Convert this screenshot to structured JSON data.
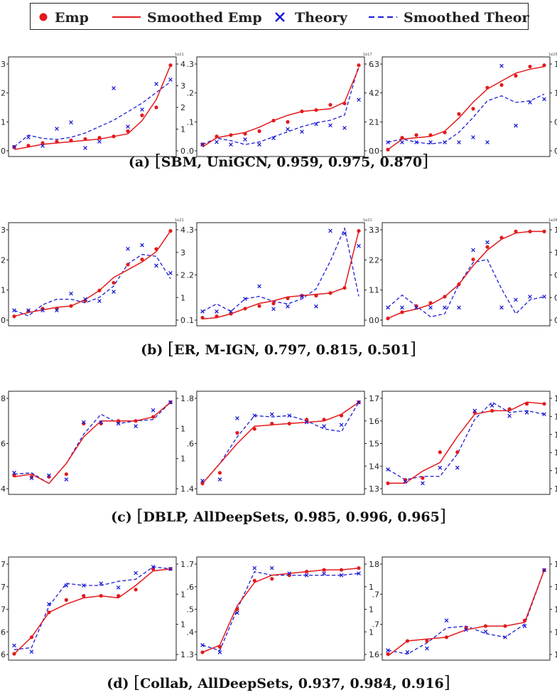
{
  "legend": {
    "emp": "Emp",
    "smoothed_emp": "Smoothed Emp",
    "theory": "Theory",
    "smoothed_theory": "Smoothed Theory"
  },
  "colors": {
    "emp": "#e31a1c",
    "theory": "#1c1cd6",
    "axis": "#222222"
  },
  "chart_data": [
    {
      "row": "a",
      "caption": {
        "label": "(a)",
        "open": "[",
        "text": "SBM, UniGCN, 0.959, 0.975, 0.870",
        "close": "]"
      },
      "panels": [
        {
          "type": "scatter",
          "left_ticks": [
            ".0",
            ".1",
            ".2",
            ".3"
          ],
          "ylim_left": [
            0,
            0.34
          ],
          "right_ticks": [
            "0",
            "1",
            "2",
            "3",
            "4"
          ],
          "ylim_right": [
            -0.2,
            4.0
          ],
          "exponent": "1e21",
          "emp": [
            0.02,
            0.025,
            0.035,
            0.04,
            0.045,
            0.05,
            0.055,
            0.06,
            0.08,
            0.14,
            0.17,
            0.33
          ],
          "emp_smooth": [
            0.01,
            0.02,
            0.03,
            0.035,
            0.04,
            0.045,
            0.05,
            0.06,
            0.07,
            0.12,
            0.2,
            0.33
          ],
          "theory": [
            0.05,
            0.5,
            0.1,
            0.9,
            1.2,
            0.0,
            0.3,
            2.8,
            1.0,
            1.8,
            3.0,
            3.2
          ],
          "theory_smooth": [
            0.05,
            0.6,
            0.45,
            0.4,
            0.5,
            0.7,
            1.0,
            1.3,
            1.7,
            2.1,
            2.6,
            3.1
          ]
        },
        {
          "type": "scatter",
          "left_ticks": [
            ".0",
            ".1",
            ".2",
            ".3"
          ],
          "ylim_left": [
            0,
            0.34
          ],
          "right_ticks": [
            "0",
            "2",
            "4",
            "6"
          ],
          "ylim_right": [
            -0.6,
            6.4
          ],
          "exponent": "1e17",
          "emp": [
            0.03,
            0.06,
            0.065,
            0.07,
            0.08,
            0.12,
            0.115,
            0.155,
            0.16,
            0.18,
            0.185,
            0.33
          ],
          "emp_smooth": [
            0.02,
            0.055,
            0.065,
            0.075,
            0.095,
            0.12,
            0.14,
            0.155,
            0.16,
            0.165,
            0.19,
            0.32
          ],
          "theory": [
            0,
            0.2,
            0,
            0.4,
            0,
            0.5,
            1.2,
            1.0,
            1.6,
            1.5,
            1.3,
            3.5
          ],
          "theory_smooth": [
            0,
            0.5,
            0.3,
            0,
            0.2,
            0.6,
            1.0,
            1.4,
            1.7,
            1.9,
            2.3,
            6.2
          ]
        },
        {
          "type": "scatter",
          "left_ticks": [
            ".0",
            ".1",
            ".2",
            ".3"
          ],
          "ylim_left": [
            0,
            0.34
          ],
          "right_ticks": [
            "0",
            "0",
            "1",
            "1"
          ],
          "ylim_right": [
            -0.6,
            4.8
          ],
          "exponent": "1e25",
          "emp": [
            0.01,
            0.055,
            0.065,
            0.065,
            0.075,
            0.145,
            0.165,
            0.245,
            0.255,
            0.29,
            0.325,
            0.33
          ],
          "emp_smooth": [
            0.01,
            0.05,
            0.055,
            0.06,
            0.08,
            0.13,
            0.19,
            0.24,
            0.27,
            0.3,
            0.315,
            0.325
          ],
          "theory": [
            0.0,
            0.0,
            0.0,
            0.0,
            0.0,
            0.0,
            0.3,
            0.0,
            4.6,
            1.0,
            2.4,
            2.6
          ],
          "theory_smooth": [
            0.0,
            0.2,
            0.0,
            -0.1,
            0.0,
            0.6,
            1.5,
            2.5,
            2.8,
            2.4,
            2.5,
            2.9
          ]
        }
      ]
    },
    {
      "row": "b",
      "caption": {
        "label": "(b)",
        "open": "[",
        "text": "ER, M-IGN, 0.797, 0.815, 0.501",
        "close": "]"
      },
      "panels": [
        {
          "type": "scatter",
          "left_ticks": [
            ".0",
            ".1",
            ".2",
            ".3"
          ],
          "ylim_left": [
            0,
            0.36
          ],
          "right_ticks": [
            "0",
            "1",
            "2",
            "3",
            "4"
          ],
          "ylim_right": [
            -0.6,
            4.4
          ],
          "exponent": "1e21",
          "emp": [
            0.02,
            0.04,
            0.05,
            0.05,
            0.06,
            0.08,
            0.12,
            0.15,
            0.22,
            0.24,
            0.28,
            0.35
          ],
          "emp_smooth": [
            0.02,
            0.035,
            0.045,
            0.055,
            0.06,
            0.085,
            0.12,
            0.17,
            0.2,
            0.23,
            0.27,
            0.35
          ],
          "theory": [
            0.0,
            0.0,
            0.0,
            0.0,
            0.9,
            0.6,
            0.5,
            1.0,
            3.3,
            3.5,
            2.4,
            2.0
          ],
          "theory_smooth": [
            0.0,
            -0.3,
            0.3,
            0.6,
            0.6,
            0.4,
            0.7,
            1.3,
            2.5,
            3.0,
            2.9,
            1.7
          ]
        },
        {
          "type": "scatter",
          "left_ticks": [
            ".1",
            ".2",
            ".3"
          ],
          "ylim_left": [
            0.06,
            0.42
          ],
          "right_ticks": [
            "0",
            "1",
            "2",
            "3"
          ],
          "ylim_right": [
            -0.4,
            3.3
          ],
          "exponent": "1e21",
          "emp": [
            0.075,
            0.08,
            0.09,
            0.11,
            0.12,
            0.13,
            0.15,
            0.16,
            0.16,
            0.17,
            0.19,
            0.41
          ],
          "emp_smooth": [
            0.07,
            0.075,
            0.09,
            0.11,
            0.13,
            0.14,
            0.155,
            0.16,
            0.165,
            0.17,
            0.19,
            0.41
          ],
          "theory": [
            0.0,
            0.0,
            0.0,
            0.5,
            1.0,
            0.1,
            0.2,
            0.6,
            0.2,
            3.2,
            3.1,
            2.6
          ],
          "theory_smooth": [
            0.0,
            0.3,
            0.0,
            0.5,
            0.6,
            0.4,
            0.3,
            0.5,
            0.9,
            2.0,
            3.3,
            0.6
          ]
        },
        {
          "type": "scatter",
          "left_ticks": [
            ".0",
            ".1",
            ".2",
            ".3"
          ],
          "ylim_left": [
            0,
            0.3
          ],
          "right_ticks": [
            "0",
            "0",
            "0",
            "1",
            "1"
          ],
          "ylim_right": [
            -0.6,
            5.4
          ],
          "exponent": "1e26",
          "emp": [
            0.01,
            0.03,
            0.05,
            0.06,
            0.08,
            0.12,
            0.2,
            0.24,
            0.27,
            0.29,
            0.29,
            0.29
          ],
          "emp_smooth": [
            0.01,
            0.03,
            0.04,
            0.055,
            0.08,
            0.12,
            0.18,
            0.23,
            0.265,
            0.285,
            0.29,
            0.29
          ],
          "theory": [
            0.3,
            0.3,
            0.3,
            0.3,
            0.3,
            0.3,
            4.0,
            4.5,
            0.3,
            0.8,
            1.0,
            1.0
          ],
          "theory_smooth": [
            0.3,
            1.1,
            0.4,
            -0.3,
            -0.1,
            1.8,
            3.2,
            3.4,
            1.5,
            -0.1,
            0.8,
            1.0
          ]
        }
      ]
    },
    {
      "row": "c",
      "caption": {
        "label": "(c)",
        "open": "[",
        "text": "DBLP, AllDeepSets, 0.985, 0.996, 0.965",
        "close": "]"
      },
      "panels": [
        {
          "type": "scatter",
          "left_ticks": [
            ".4",
            ".6",
            ".8"
          ],
          "ylim_left": [
            0.2,
            0.9
          ],
          "right_ticks": [
            "1",
            "1",
            "1",
            "1"
          ],
          "ylim_right": [
            0.2,
            0.9
          ],
          "exponent": "",
          "emp": [
            0.31,
            0.3,
            0.3,
            0.32,
            0.7,
            0.7,
            0.72,
            0.72,
            0.75,
            0.86
          ],
          "emp_smooth": [
            0.3,
            0.32,
            0.25,
            0.4,
            0.6,
            0.72,
            0.72,
            0.72,
            0.75,
            0.86
          ],
          "theory": [
            0.33,
            0.29,
            0.31,
            0.28,
            0.71,
            0.71,
            0.7,
            0.68,
            0.8,
            0.86
          ],
          "theory_smooth": [
            0.32,
            0.33,
            0.25,
            0.4,
            0.62,
            0.77,
            0.7,
            0.72,
            0.73,
            0.86
          ]
        },
        {
          "type": "scatter",
          "left_ticks": [
            ".4",
            ".6",
            ".8"
          ],
          "ylim_left": [
            0.2,
            0.9
          ],
          "right_ticks": [
            "1",
            "1",
            "1",
            "1",
            "1"
          ],
          "ylim_right": [
            0.2,
            0.9
          ],
          "exponent": "",
          "emp": [
            0.25,
            0.33,
            0.63,
            0.66,
            0.7,
            0.7,
            0.73,
            0.73,
            0.76,
            0.86
          ],
          "emp_smooth": [
            0.25,
            0.4,
            0.55,
            0.68,
            0.69,
            0.7,
            0.71,
            0.72,
            0.77,
            0.86
          ],
          "theory": [
            0.27,
            0.28,
            0.74,
            0.76,
            0.77,
            0.76,
            0.71,
            0.68,
            0.69,
            0.86
          ],
          "theory_smooth": [
            0.25,
            0.4,
            0.6,
            0.76,
            0.75,
            0.76,
            0.72,
            0.66,
            0.64,
            0.86
          ]
        },
        {
          "type": "scatter",
          "left_ticks": [
            ".3",
            ".4",
            ".5",
            ".6",
            ".7"
          ],
          "ylim_left": [
            0.24,
            0.78
          ],
          "right_ticks": [
            "1",
            "1",
            "1",
            "1",
            "1",
            "1"
          ],
          "ylim_right": [
            0.24,
            0.78
          ],
          "exponent": "",
          "emp": [
            0.28,
            0.3,
            0.31,
            0.46,
            0.46,
            0.69,
            0.7,
            0.71,
            0.74,
            0.74
          ],
          "emp_smooth": [
            0.28,
            0.28,
            0.35,
            0.4,
            0.55,
            0.68,
            0.7,
            0.7,
            0.75,
            0.74
          ],
          "theory": [
            0.36,
            0.29,
            0.28,
            0.37,
            0.37,
            0.7,
            0.73,
            0.67,
            0.69,
            0.68
          ],
          "theory_smooth": [
            0.36,
            0.3,
            0.32,
            0.32,
            0.45,
            0.65,
            0.75,
            0.69,
            0.7,
            0.68
          ]
        }
      ]
    },
    {
      "row": "d",
      "caption": {
        "label": "(d)",
        "open": "[",
        "text": "Collab, AllDeepSets, 0.937, 0.984, 0.916",
        "close": "]"
      },
      "panels": [
        {
          "type": "scatter",
          "left_ticks": [
            ".6",
            ".6",
            ".7",
            ".7",
            ".7"
          ],
          "ylim_left": [
            0.55,
            1.0
          ],
          "right_ticks": [
            "1",
            "1",
            "1",
            "1"
          ],
          "ylim_right": [
            0.55,
            1.0
          ],
          "exponent": "",
          "emp": [
            0.56,
            0.64,
            0.76,
            0.82,
            0.84,
            0.84,
            0.84,
            0.87,
            0.97,
            0.97
          ],
          "emp_smooth": [
            0.56,
            0.64,
            0.76,
            0.8,
            0.83,
            0.84,
            0.83,
            0.89,
            0.96,
            0.97
          ],
          "theory": [
            0.6,
            0.57,
            0.8,
            0.89,
            0.89,
            0.9,
            0.88,
            0.95,
            0.98,
            0.97
          ],
          "theory_smooth": [
            0.58,
            0.59,
            0.79,
            0.9,
            0.89,
            0.89,
            0.91,
            0.92,
            0.98,
            0.97
          ]
        },
        {
          "type": "scatter",
          "left_ticks": [
            ".3",
            ".4",
            ".5",
            ".6",
            ".7"
          ],
          "ylim_left": [
            0.24,
            0.76
          ],
          "right_ticks": [
            "1",
            "1",
            "1",
            "1",
            "1"
          ],
          "ylim_right": [
            0.24,
            0.76
          ],
          "exponent": "",
          "emp": [
            0.26,
            0.29,
            0.5,
            0.66,
            0.67,
            0.69,
            0.71,
            0.72,
            0.72,
            0.73
          ],
          "emp_smooth": [
            0.26,
            0.3,
            0.52,
            0.65,
            0.69,
            0.7,
            0.71,
            0.72,
            0.72,
            0.73
          ],
          "theory": [
            0.3,
            0.26,
            0.48,
            0.73,
            0.73,
            0.7,
            0.69,
            0.7,
            0.69,
            0.7
          ],
          "theory_smooth": [
            0.3,
            0.27,
            0.5,
            0.71,
            0.69,
            0.69,
            0.69,
            0.69,
            0.69,
            0.7
          ]
        },
        {
          "type": "scatter",
          "left_ticks": [
            ".6",
            ".7",
            ".7",
            ".8"
          ],
          "ylim_left": [
            0.5,
            1.0
          ],
          "right_ticks": [
            "1",
            "1",
            "1",
            "1",
            "1"
          ],
          "ylim_right": [
            0.5,
            1.0
          ],
          "exponent": "",
          "emp": [
            0.51,
            0.58,
            0.58,
            0.6,
            0.65,
            0.66,
            0.66,
            0.69,
            0.96
          ],
          "emp_smooth": [
            0.5,
            0.58,
            0.59,
            0.6,
            0.64,
            0.66,
            0.66,
            0.68,
            0.96
          ],
          "theory": [
            0.53,
            0.52,
            0.54,
            0.69,
            0.64,
            0.63,
            0.6,
            0.66,
            0.96
          ],
          "theory_smooth": [
            0.53,
            0.51,
            0.57,
            0.65,
            0.66,
            0.62,
            0.6,
            0.67,
            0.96
          ]
        }
      ]
    }
  ]
}
